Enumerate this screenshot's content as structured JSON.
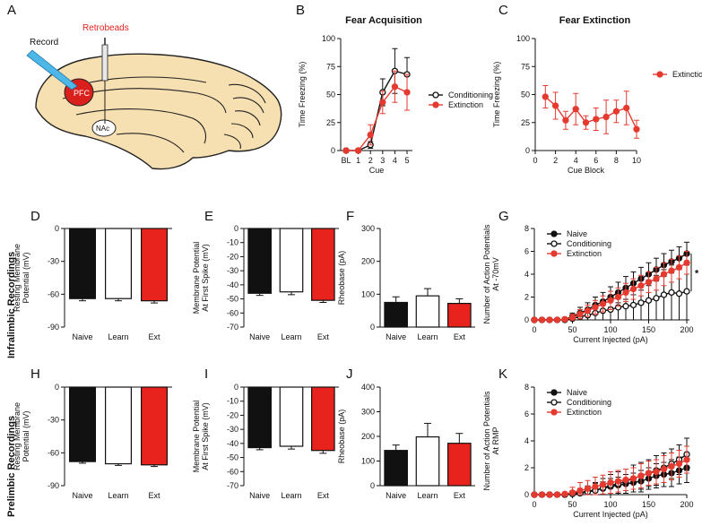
{
  "colors": {
    "naive": "#111111",
    "learn": "#ffffff",
    "ext": "#e8221c",
    "red": "#e53a2f",
    "black": "#111111"
  },
  "row_labels": [
    "Infralimbic Recordings",
    "Prelimbic Recordings"
  ],
  "panel_letters": {
    "A": "A",
    "B": "B",
    "C": "C",
    "D": "D",
    "E": "E",
    "F": "F",
    "G": "G",
    "H": "H",
    "I": "I",
    "J": "J",
    "K": "K"
  },
  "brain": {
    "record": "Record",
    "retrobeads": "Retrobeads",
    "pfc": "PFC",
    "nac": "NAc"
  },
  "chart_data": [
    {
      "id": "B",
      "type": "line",
      "title": "Fear Acquisition",
      "xlabel": "Cue",
      "ylabel": "Time Freezing (%)",
      "categories": [
        "BL",
        "1",
        "2",
        "3",
        "4",
        "5"
      ],
      "ylim": [
        0,
        100
      ],
      "yticks": [
        0,
        25,
        50,
        75,
        100
      ],
      "legend": "right",
      "series": [
        {
          "name": "Conditioning",
          "color": "#111111",
          "fill": "open",
          "values": [
            0,
            0,
            5,
            52,
            71,
            68
          ],
          "errors": [
            0,
            0,
            3,
            12,
            20,
            15
          ]
        },
        {
          "name": "Extinction",
          "color": "#e53a2f",
          "fill": "filled",
          "values": [
            0,
            0,
            14,
            43,
            57,
            52
          ],
          "errors": [
            0,
            0,
            9,
            10,
            14,
            16
          ]
        }
      ]
    },
    {
      "id": "C",
      "type": "line",
      "title": "Fear Extinction",
      "xlabel": "Cue Block",
      "ylabel": "Time Freezing (%)",
      "x": [
        1,
        2,
        3,
        4,
        5,
        6,
        7,
        8,
        9,
        10
      ],
      "xlim": [
        0,
        10
      ],
      "xticks": [
        0,
        2,
        4,
        6,
        8,
        10
      ],
      "ylim": [
        0,
        100
      ],
      "yticks": [
        0,
        25,
        50,
        75,
        100
      ],
      "legend": "right",
      "series": [
        {
          "name": "Extinction",
          "color": "#e53a2f",
          "fill": "filled",
          "values": [
            48,
            40,
            27,
            37,
            25,
            28,
            30,
            35,
            38,
            19
          ],
          "errors": [
            10,
            12,
            8,
            14,
            6,
            10,
            15,
            10,
            15,
            8
          ]
        }
      ]
    },
    {
      "id": "D",
      "type": "bar",
      "ylabel": [
        "Resting  Membrane",
        "Potential (mV)"
      ],
      "categories": [
        "Naive",
        "Learn",
        "Ext"
      ],
      "values": [
        -64,
        -64,
        -66
      ],
      "errors": [
        2,
        2,
        2
      ],
      "ylim": [
        -90,
        0
      ],
      "yticks": [
        0,
        -30,
        -60,
        -90
      ]
    },
    {
      "id": "E",
      "type": "bar",
      "ylabel": [
        "Membrane Potential",
        "At First Spike (mV)"
      ],
      "categories": [
        "Naive",
        "Learn",
        "Ext"
      ],
      "values": [
        -46,
        -45,
        -51
      ],
      "errors": [
        1.5,
        2,
        1.5
      ],
      "ylim": [
        -70,
        0
      ],
      "yticks": [
        0,
        -10,
        -20,
        -30,
        -40,
        -50,
        -60,
        -70
      ]
    },
    {
      "id": "F",
      "type": "bar",
      "ylabel": [
        "Rheobase (pA)"
      ],
      "categories": [
        "Naive",
        "Learn",
        "Ext"
      ],
      "values": [
        75,
        95,
        72
      ],
      "errors": [
        17,
        22,
        14
      ],
      "ylim": [
        0,
        300
      ],
      "yticks": [
        0,
        100,
        200,
        300
      ]
    },
    {
      "id": "G",
      "type": "line",
      "ylabel": [
        "Number of Action Potentials",
        "At -70mV"
      ],
      "xlabel": "Current Injected (pA)",
      "x": [
        0,
        10,
        20,
        30,
        40,
        50,
        60,
        70,
        80,
        90,
        100,
        110,
        120,
        130,
        140,
        150,
        160,
        170,
        180,
        190,
        200
      ],
      "xlim": [
        0,
        200
      ],
      "xticks": [
        0,
        50,
        100,
        150,
        200
      ],
      "ylim": [
        0,
        8
      ],
      "yticks": [
        0,
        2,
        4,
        6,
        8
      ],
      "legend": "top-left",
      "annotation": "*",
      "series": [
        {
          "name": "Naive",
          "color": "#111111",
          "fill": "filled",
          "values": [
            0,
            0,
            0,
            0,
            0.05,
            0.3,
            0.6,
            0.9,
            1.3,
            1.6,
            2.0,
            2.4,
            2.8,
            3.2,
            3.6,
            4.0,
            4.4,
            4.8,
            5.1,
            5.4,
            5.8
          ],
          "errors": [
            0,
            0,
            0,
            0,
            0.1,
            0.3,
            0.5,
            0.6,
            0.7,
            0.8,
            0.9,
            0.9,
            1.0,
            1.0,
            1.0,
            1.0,
            1.0,
            1.0,
            1.0,
            1.0,
            1.0
          ]
        },
        {
          "name": "Conditioning",
          "color": "#111111",
          "fill": "open",
          "values": [
            0,
            0,
            0,
            0,
            0,
            0.1,
            0.3,
            0.4,
            0.6,
            0.8,
            0.9,
            1.1,
            1.2,
            1.3,
            1.5,
            1.7,
            1.9,
            2.2,
            2.4,
            2.3,
            2.5
          ],
          "errors": [
            0,
            0,
            0,
            0,
            0,
            0.2,
            0.4,
            0.6,
            0.8,
            0.9,
            1.1,
            1.3,
            1.4,
            1.5,
            1.6,
            1.8,
            2.0,
            2.2,
            2.4,
            2.4,
            2.6
          ]
        },
        {
          "name": "Extinction",
          "color": "#e53a2f",
          "fill": "filled",
          "values": [
            0,
            0,
            0,
            0,
            0.05,
            0.2,
            0.5,
            0.8,
            1.1,
            1.4,
            1.7,
            2.0,
            2.4,
            2.7,
            3.0,
            3.3,
            3.6,
            4.0,
            4.3,
            4.6,
            5.0
          ],
          "errors": [
            0,
            0,
            0,
            0,
            0.1,
            0.3,
            0.4,
            0.5,
            0.6,
            0.7,
            0.8,
            0.8,
            0.8,
            0.9,
            0.9,
            0.9,
            1.0,
            1.0,
            1.0,
            1.0,
            1.0
          ]
        }
      ]
    },
    {
      "id": "H",
      "type": "bar",
      "ylabel": [
        "Resting  Membrane",
        "Potential (mV)"
      ],
      "categories": [
        "Naive",
        "Learn",
        "Ext"
      ],
      "values": [
        -68,
        -70,
        -71
      ],
      "errors": [
        1.5,
        1.5,
        1.5
      ],
      "ylim": [
        -90,
        0
      ],
      "yticks": [
        0,
        -30,
        -60,
        -90
      ]
    },
    {
      "id": "I",
      "type": "bar",
      "ylabel": [
        "Membrane Potential",
        "At First Spike (mV)"
      ],
      "categories": [
        "Naive",
        "Learn",
        "Ext"
      ],
      "values": [
        -43,
        -42,
        -45
      ],
      "errors": [
        1.5,
        2,
        2
      ],
      "ylim": [
        -70,
        0
      ],
      "yticks": [
        0,
        -10,
        -20,
        -30,
        -40,
        -50,
        -60,
        -70
      ]
    },
    {
      "id": "J",
      "type": "bar",
      "ylabel": [
        "Rheobase (pA)"
      ],
      "categories": [
        "Naive",
        "Learn",
        "Ext"
      ],
      "values": [
        143,
        198,
        172
      ],
      "errors": [
        22,
        55,
        40
      ],
      "ylim": [
        0,
        400
      ],
      "yticks": [
        0,
        100,
        200,
        300,
        400
      ]
    },
    {
      "id": "K",
      "type": "line",
      "ylabel": [
        "Number of Action Potentials",
        "At RMP"
      ],
      "xlabel": "Current Injected (pA)",
      "x": [
        0,
        10,
        20,
        30,
        40,
        50,
        60,
        70,
        80,
        90,
        100,
        110,
        120,
        130,
        140,
        150,
        160,
        170,
        180,
        190,
        200
      ],
      "xlim": [
        0,
        200
      ],
      "xticks": [
        0,
        50,
        100,
        150,
        200
      ],
      "ylim": [
        0,
        8
      ],
      "yticks": [
        0,
        2,
        4,
        6,
        8
      ],
      "legend": "top-left",
      "series": [
        {
          "name": "Naive",
          "color": "#111111",
          "fill": "filled",
          "values": [
            0,
            0,
            0,
            0,
            0,
            0.1,
            0.15,
            0.25,
            0.35,
            0.45,
            0.6,
            0.7,
            0.8,
            0.9,
            1.0,
            1.2,
            1.4,
            1.5,
            1.6,
            1.8,
            2.0
          ],
          "errors": [
            0,
            0,
            0,
            0,
            0,
            0.2,
            0.3,
            0.4,
            0.5,
            0.5,
            0.6,
            0.6,
            0.7,
            0.7,
            0.8,
            0.8,
            0.9,
            0.9,
            1.0,
            1.0,
            1.1
          ]
        },
        {
          "name": "Conditioning",
          "color": "#111111",
          "fill": "open",
          "values": [
            0,
            0,
            0,
            0,
            0,
            0.05,
            0.1,
            0.2,
            0.3,
            0.5,
            0.7,
            0.8,
            1.0,
            1.2,
            1.4,
            1.6,
            1.8,
            2.0,
            2.3,
            2.6,
            3.0
          ],
          "errors": [
            0,
            0,
            0,
            0,
            0,
            0.1,
            0.3,
            0.4,
            0.6,
            0.7,
            0.8,
            0.9,
            0.9,
            1.0,
            1.0,
            1.0,
            1.1,
            1.1,
            1.1,
            1.1,
            1.2
          ]
        },
        {
          "name": "Extinction",
          "color": "#e53a2f",
          "fill": "filled",
          "values": [
            0,
            0,
            0,
            0,
            0.05,
            0.15,
            0.3,
            0.45,
            0.6,
            0.75,
            0.9,
            1.0,
            1.1,
            1.2,
            1.4,
            1.6,
            1.7,
            1.9,
            2.1,
            2.3,
            2.6
          ],
          "errors": [
            0,
            0,
            0,
            0,
            0.1,
            0.4,
            0.6,
            0.6,
            0.7,
            0.7,
            0.8,
            0.8,
            0.8,
            0.8,
            0.9,
            0.9,
            0.9,
            1.0,
            1.0,
            1.0,
            1.0
          ]
        }
      ]
    }
  ]
}
